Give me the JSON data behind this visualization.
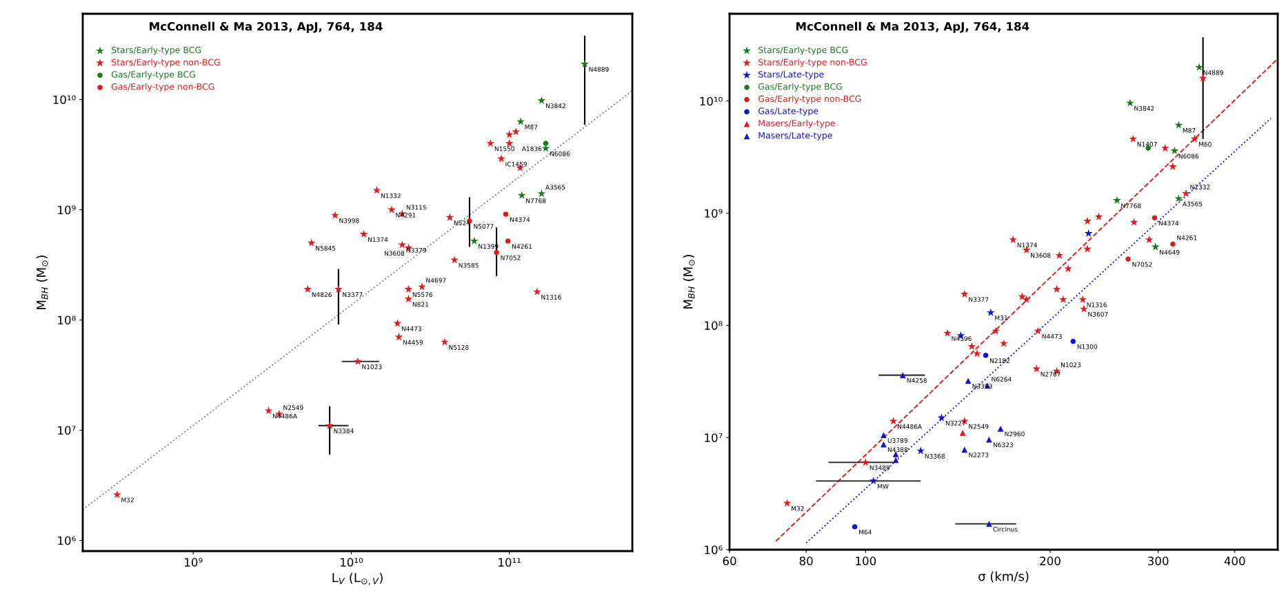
{
  "chart_data": [
    {
      "type": "scatter",
      "title": "McConnell & Ma 2013, ApJ, 764, 184",
      "xlabel": "L$_{V}$ (L$_{⊙,V}$)",
      "ylabel": "M$_{BH}$ (M$_{⊙}$)",
      "log": "xy",
      "legend": "top left",
      "xlim": [
        200000000.0,
        600000000000.0
      ],
      "ylim": [
        800000.0,
        60000000000.0
      ],
      "xticks": [
        {
          "value": 1000000000.0,
          "label": "10⁹"
        },
        {
          "value": 10000000000.0,
          "label": "10¹⁰"
        },
        {
          "value": 100000000000.0,
          "label": "10¹¹"
        }
      ],
      "yticks": [
        {
          "value": 1000000.0,
          "label": "10⁶"
        },
        {
          "value": 10000000.0,
          "label": "10⁷"
        },
        {
          "value": 100000000.0,
          "label": "10⁸"
        },
        {
          "value": 1000000000.0,
          "label": "10⁹"
        },
        {
          "value": 10000000000.0,
          "label": "10¹⁰"
        }
      ],
      "series": [
        {
          "name": "Stars/Early-type BCG",
          "color": "#1b7a1b",
          "marker": "star",
          "x": [
            118000000000.0,
            160000000000.0,
            300000000000.0,
            170000000000.0,
            120000000000.0,
            160000000000.0,
            60000000000.0
          ],
          "values": [
            6300000000.0,
            9800000000.0,
            21000000000.0,
            3600000000.0,
            1350000000.0,
            1400000000.0,
            520000000.0
          ],
          "errors": [
            null,
            null,
            [
              5900000000.0,
              38000000000.0
            ],
            null,
            null,
            null,
            null
          ]
        },
        {
          "name": "Stars/Early-type non-BCG",
          "color": "#e31a1c",
          "marker": "star",
          "x": [
            330000000.0,
            3000000000.0,
            3500000000.0,
            7300000000.0,
            11000000000.0,
            5300000000.0,
            8300000000.0,
            5600000000.0,
            7900000000.0,
            12000000000.0,
            14500000000.0,
            18000000000.0,
            21000000000.0,
            21000000000.0,
            23000000000.0,
            19600000000.0,
            20000000000.0,
            23000000000.0,
            23000000000.0,
            28000000000.0,
            39000000000.0,
            45000000000.0,
            42000000000.0,
            150000000000.0,
            89000000000.0,
            76000000000.0,
            100000000000.0,
            110000000000.0,
            100000000000.0,
            117000000000.0
          ],
          "values": [
            2600000.0,
            15000000.0,
            14000000.0,
            11000000.0,
            42000000.0,
            190000000.0,
            190000000.0,
            500000000.0,
            890000000.0,
            600000000.0,
            1500000000.0,
            1000000000.0,
            920000000.0,
            480000000.0,
            450000000.0,
            93000000.0,
            70000000.0,
            190000000.0,
            155000000.0,
            200000000.0,
            63000000.0,
            350000000.0,
            850000000.0,
            180000000.0,
            2900000000.0,
            4000000000.0,
            4800000000.0,
            5100000000.0,
            4000000000.0,
            2400000000.0
          ],
          "errors": [
            null,
            null,
            null,
            [
              6000000.0,
              16500000.0
            ],
            null,
            null,
            [
              91000000.0,
              290000000.0
            ],
            null,
            null,
            null,
            null,
            null,
            null,
            null,
            null,
            null,
            null,
            null,
            null,
            null,
            null,
            null,
            null,
            null,
            null,
            null,
            null,
            null,
            null,
            null
          ],
          "xerrors": [
            null,
            null,
            null,
            [
              6200000000.0,
              9600000000.0
            ],
            [
              8700000000.0,
              15000000000.0
            ],
            null,
            null,
            null,
            null,
            null,
            null,
            null,
            null,
            null,
            null,
            null,
            null,
            null,
            null,
            null,
            null,
            null,
            null,
            null,
            null,
            null,
            null,
            null,
            null,
            null
          ]
        },
        {
          "name": "Gas/Early-type BCG",
          "color": "#1b7a1b",
          "marker": "circle",
          "x": [
            170000000000.0
          ],
          "values": [
            4000000000.0
          ]
        },
        {
          "name": "Gas/Early-type non-BCG",
          "color": "#e31a1c",
          "marker": "circle",
          "x": [
            95000000000.0,
            98000000000.0,
            83000000000.0,
            56000000000.0
          ],
          "values": [
            910000000.0,
            520000000.0,
            410000000.0,
            790000000.0
          ],
          "errors": [
            null,
            null,
            [
              250000000.0,
              690000000.0
            ],
            [
              460000000.0,
              1300000000.0
            ]
          ]
        },
        {
          "type": "line",
          "color": "#808080",
          "line_style": "dotted",
          "x": [
            200000000.0,
            600000000000.0
          ],
          "values": [
            1900000.0,
            12000000000.0
          ]
        }
      ],
      "annotations": [
        {
          "text": "M87",
          "x": 118000000000.0,
          "y": 6300000000.0
        },
        {
          "text": "N3842",
          "x": 160000000000.0,
          "y": 9800000000.0
        },
        {
          "text": "N4889",
          "x": 300000000000.0,
          "y": 21000000000.0
        },
        {
          "text": "N6086",
          "x": 170000000000.0,
          "y": 3600000000.0
        },
        {
          "text": "N7768",
          "x": 120000000000.0,
          "y": 1350000000.0
        },
        {
          "text": "A3565",
          "x": 160000000000.0,
          "y": 1400000000.0
        },
        {
          "text": "N1399",
          "x": 60000000000.0,
          "y": 520000000.0
        },
        {
          "text": "M32",
          "x": 330000000.0,
          "y": 2600000.0
        },
        {
          "text": "N4486A",
          "x": 3000000000.0,
          "y": 15000000.0
        },
        {
          "text": "N2549",
          "x": 3500000000.0,
          "y": 14000000.0
        },
        {
          "text": "N3384",
          "x": 7300000000.0,
          "y": 11000000.0
        },
        {
          "text": "N1023",
          "x": 11000000000.0,
          "y": 42000000.0
        },
        {
          "text": "N4826",
          "x": 5300000000.0,
          "y": 190000000.0
        },
        {
          "text": "N3377",
          "x": 8300000000.0,
          "y": 190000000.0
        },
        {
          "text": "N5845",
          "x": 5600000000.0,
          "y": 500000000.0
        },
        {
          "text": "N3998",
          "x": 7900000000.0,
          "y": 890000000.0
        },
        {
          "text": "N1374",
          "x": 12000000000.0,
          "y": 600000000.0
        },
        {
          "text": "N1332",
          "x": 14500000000.0,
          "y": 1500000000.0
        },
        {
          "text": "N4291",
          "x": 18000000000.0,
          "y": 1000000000.0
        },
        {
          "text": "N3115",
          "x": 21000000000.0,
          "y": 920000000.0
        },
        {
          "text": "N3379",
          "x": 21000000000.0,
          "y": 480000000.0
        },
        {
          "text": "N3608",
          "x": 23000000000.0,
          "y": 450000000.0
        },
        {
          "text": "N4473",
          "x": 19600000000.0,
          "y": 93000000.0
        },
        {
          "text": "N4459",
          "x": 20000000000.0,
          "y": 70000000.0
        },
        {
          "text": "N5576",
          "x": 23000000000.0,
          "y": 190000000.0
        },
        {
          "text": "N821",
          "x": 23000000000.0,
          "y": 155000000.0
        },
        {
          "text": "N4697",
          "x": 28000000000.0,
          "y": 200000000.0
        },
        {
          "text": "N5128",
          "x": 39000000000.0,
          "y": 63000000.0
        },
        {
          "text": "N3585",
          "x": 45000000000.0,
          "y": 350000000.0
        },
        {
          "text": "N524",
          "x": 42000000000.0,
          "y": 850000000.0
        },
        {
          "text": "N1316",
          "x": 150000000000.0,
          "y": 180000000.0
        },
        {
          "text": "IC1459",
          "x": 89000000000.0,
          "y": 2900000000.0
        },
        {
          "text": "N1550",
          "x": 76000000000.0,
          "y": 4000000000.0
        },
        {
          "text": "A1836",
          "x": 170000000000.0,
          "y": 4000000000.0
        },
        {
          "text": "N4374",
          "x": 95000000000.0,
          "y": 910000000.0
        },
        {
          "text": "N4261",
          "x": 98000000000.0,
          "y": 520000000.0
        },
        {
          "text": "N7052",
          "x": 83000000000.0,
          "y": 410000000.0
        },
        {
          "text": "N5077",
          "x": 56000000000.0,
          "y": 790000000.0
        }
      ]
    },
    {
      "type": "scatter",
      "title": "McConnell & Ma 2013, ApJ, 764, 184",
      "xlabel": "σ (km/s)",
      "ylabel": "M$_{BH}$ (M$_{⊙}$)",
      "log": "xy",
      "legend": "top left",
      "xlim": [
        60,
        470
      ],
      "ylim": [
        1000000.0,
        60000000000.0
      ],
      "xticks": [
        60,
        80,
        100,
        200,
        300,
        400
      ],
      "yticks": [
        {
          "value": 1000000.0,
          "label": "10⁶"
        },
        {
          "value": 10000000.0,
          "label": "10⁷"
        },
        {
          "value": 100000000.0,
          "label": "10⁸"
        },
        {
          "value": 1000000000.0,
          "label": "10⁹"
        },
        {
          "value": 10000000000.0,
          "label": "10¹⁰"
        }
      ],
      "series": [
        {
          "name": "Stars/Early-type BCG",
          "color": "#1b7a1b",
          "marker": "star",
          "x": [
            350,
            270,
            324,
            319,
            257,
            324,
            297
          ],
          "values": [
            20000000000.0,
            9600000000.0,
            6100000000.0,
            3600000000.0,
            1300000000.0,
            1350000000.0,
            500000000.0
          ]
        },
        {
          "name": "Stars/Early-type non-BCG",
          "color": "#e31a1c",
          "marker": "star",
          "x": [
            355,
            344,
            273,
            308,
            317,
            333,
            274,
            230,
            240,
            230,
            174,
            183,
            207,
            214,
            290,
            145,
            180,
            183,
            205,
            210,
            226,
            227,
            191,
            163,
            136,
            149,
            152,
            168,
            190,
            205,
            145,
            111,
            100,
            74.5
          ],
          "values": [
            16000000000.0,
            4600000000.0,
            4600000000.0,
            3800000000.0,
            2600000000.0,
            1500000000.0,
            830000000.0,
            850000000.0,
            930000000.0,
            480000000.0,
            580000000.0,
            470000000.0,
            420000000.0,
            320000000.0,
            580000000.0,
            190000000.0,
            180000000.0,
            170000000.0,
            210000000.0,
            170000000.0,
            170000000.0,
            140000000.0,
            89000000.0,
            89000000.0,
            85000000.0,
            65000000.0,
            56000000.0,
            69000000.0,
            41000000.0,
            39000000.0,
            14000000.0,
            14000000.0,
            6000000.0,
            2600000.0
          ],
          "errors": [
            [
              4600000000.0,
              37000000000.0
            ],
            null,
            null,
            null,
            null,
            null,
            null,
            null,
            null,
            null,
            null,
            null,
            null,
            null,
            null,
            null,
            null,
            null,
            null,
            null,
            null,
            null,
            null,
            null,
            null,
            null,
            null,
            null,
            null,
            null,
            null,
            null,
            null,
            null
          ],
          "xerrors": [
            null,
            null,
            null,
            null,
            null,
            null,
            null,
            null,
            null,
            null,
            null,
            null,
            null,
            null,
            null,
            null,
            null,
            null,
            null,
            null,
            null,
            null,
            null,
            null,
            null,
            null,
            null,
            null,
            null,
            null,
            null,
            null,
            [
              87,
              111
            ],
            null
          ]
        },
        {
          "name": "Stars/Late-type",
          "color": "#1414c8",
          "marker": "star",
          "x": [
            160,
            103,
            133,
            143,
            123,
            231
          ],
          "values": [
            130000000.0,
            4100000.0,
            15000000.0,
            81000000.0,
            7600000.0,
            660000000.0
          ],
          "xerrors": [
            null,
            [
              83,
              123
            ],
            null,
            null,
            null,
            null
          ]
        },
        {
          "name": "Gas/Early-type BCG",
          "color": "#1b7a1b",
          "marker": "circle",
          "x": [
            289
          ],
          "values": [
            3800000000.0
          ]
        },
        {
          "name": "Gas/Early-type non-BCG",
          "color": "#e31a1c",
          "marker": "circle",
          "x": [
            296,
            317,
            268
          ],
          "values": [
            910000000.0,
            530000000.0,
            390000000.0
          ]
        },
        {
          "name": "Gas/Late-type",
          "color": "#1414c8",
          "marker": "circle",
          "x": [
            218,
            157,
            96
          ],
          "values": [
            72000000.0,
            54000000.0,
            1600000.0
          ]
        },
        {
          "name": "Masers/Early-type",
          "color": "#e31a1c",
          "marker": "triangle",
          "x": [
            144
          ],
          "values": [
            11000000.0
          ]
        },
        {
          "name": "Masers/Late-type",
          "color": "#1414c8",
          "marker": "triangle",
          "x": [
            115,
            147,
            158,
            166,
            159,
            107,
            107,
            145,
            112,
            112,
            159
          ],
          "values": [
            36000000.0,
            32000000.0,
            29000000.0,
            12000000.0,
            9600000.0,
            10500000.0,
            8700000.0,
            7800000.0,
            7100000.0,
            6300000.0,
            1700000.0
          ],
          "xerrors": [
            [
              105,
              125
            ],
            null,
            null,
            null,
            null,
            null,
            null,
            null,
            null,
            null,
            [
              140,
              176
            ]
          ]
        },
        {
          "type": "line",
          "color": "#e31a1c",
          "line_style": "dashed",
          "x": [
            71.4,
            467
          ],
          "values": [
            1190000.0,
            23000000000.0
          ]
        },
        {
          "type": "line",
          "color": "#1414c8",
          "line_style": "dotted",
          "x": [
            80,
            458
          ],
          "values": [
            1150000.0,
            7000000000.0
          ]
        }
      ],
      "annotations": [
        {
          "text": "N4889",
          "x": 350,
          "y": 20000000000.0
        },
        {
          "text": "N3842",
          "x": 270,
          "y": 9600000000.0
        },
        {
          "text": "M87",
          "x": 324,
          "y": 6100000000.0
        },
        {
          "text": "N6086",
          "x": 319,
          "y": 3600000000.0
        },
        {
          "text": "N7768",
          "x": 257,
          "y": 1300000000.0
        },
        {
          "text": "A3565",
          "x": 324,
          "y": 1350000000.0
        },
        {
          "text": "N4649",
          "x": 297,
          "y": 500000000.0
        },
        {
          "text": "M60",
          "x": 344,
          "y": 4600000000.0
        },
        {
          "text": "N1407",
          "x": 273,
          "y": 4600000000.0
        },
        {
          "text": "N1332",
          "x": 333,
          "y": 1500000000.0
        },
        {
          "text": "N1374",
          "x": 174,
          "y": 580000000.0
        },
        {
          "text": "N3608",
          "x": 183,
          "y": 470000000.0
        },
        {
          "text": "N3377",
          "x": 145,
          "y": 190000000.0
        },
        {
          "text": "N1316",
          "x": 226,
          "y": 170000000.0
        },
        {
          "text": "N3607",
          "x": 227,
          "y": 140000000.0
        },
        {
          "text": "N4473",
          "x": 191,
          "y": 89000000.0
        },
        {
          "text": "N4596",
          "x": 136,
          "y": 85000000.0
        },
        {
          "text": "N2787",
          "x": 190,
          "y": 41000000.0
        },
        {
          "text": "N1023",
          "x": 205,
          "y": 39000000.0
        },
        {
          "text": "N2549",
          "x": 145,
          "y": 14000000.0
        },
        {
          "text": "N4486A",
          "x": 111,
          "y": 14000000.0
        },
        {
          "text": "N3489",
          "x": 100,
          "y": 6000000.0
        },
        {
          "text": "M32",
          "x": 74.5,
          "y": 2600000.0
        },
        {
          "text": "M31",
          "x": 160,
          "y": 130000000.0
        },
        {
          "text": "MW",
          "x": 103,
          "y": 4100000.0
        },
        {
          "text": "N3227",
          "x": 133,
          "y": 15000000.0
        },
        {
          "text": "N3368",
          "x": 123,
          "y": 7600000.0
        },
        {
          "text": "N4374",
          "x": 296,
          "y": 910000000.0
        },
        {
          "text": "N4261",
          "x": 317,
          "y": 530000000.0
        },
        {
          "text": "N7052",
          "x": 268,
          "y": 390000000.0
        },
        {
          "text": "N1300",
          "x": 218,
          "y": 72000000.0
        },
        {
          "text": "N2182",
          "x": 157,
          "y": 54000000.0
        },
        {
          "text": "M64",
          "x": 96,
          "y": 1600000.0
        },
        {
          "text": "N4258",
          "x": 115,
          "y": 36000000.0
        },
        {
          "text": "N3393",
          "x": 147,
          "y": 32000000.0
        },
        {
          "text": "N6264",
          "x": 158,
          "y": 29000000.0
        },
        {
          "text": "N2960",
          "x": 166,
          "y": 12000000.0
        },
        {
          "text": "N6323",
          "x": 159,
          "y": 9600000.0
        },
        {
          "text": "U3789",
          "x": 107,
          "y": 10500000.0
        },
        {
          "text": "N4388",
          "x": 107,
          "y": 8700000.0
        },
        {
          "text": "N2273",
          "x": 145,
          "y": 7800000.0
        },
        {
          "text": "Circinus",
          "x": 159,
          "y": 1700000.0
        }
      ]
    }
  ]
}
